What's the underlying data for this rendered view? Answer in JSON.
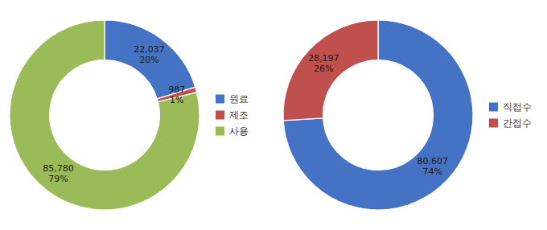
{
  "chart_data": [
    {
      "type": "pie",
      "categories": [
        "원료",
        "제조",
        "사용"
      ],
      "values": [
        22037,
        987,
        85780
      ],
      "value_labels": [
        "22,037",
        "987",
        "85,780"
      ],
      "shares": [
        20,
        1,
        79
      ],
      "share_labels": [
        "20%",
        "1%",
        "79%"
      ],
      "colors": [
        "#4472C4",
        "#C0504D",
        "#9BBB59"
      ],
      "data_labels": true,
      "legend": "right"
    },
    {
      "type": "pie",
      "categories": [
        "직접수",
        "간접수"
      ],
      "values": [
        80607,
        28197
      ],
      "value_labels": [
        "80,607",
        "28,197"
      ],
      "shares": [
        74,
        26
      ],
      "share_labels": [
        "74%",
        "26%"
      ],
      "colors": [
        "#4472C4",
        "#C0504D"
      ],
      "data_labels": true,
      "legend": "right"
    }
  ]
}
